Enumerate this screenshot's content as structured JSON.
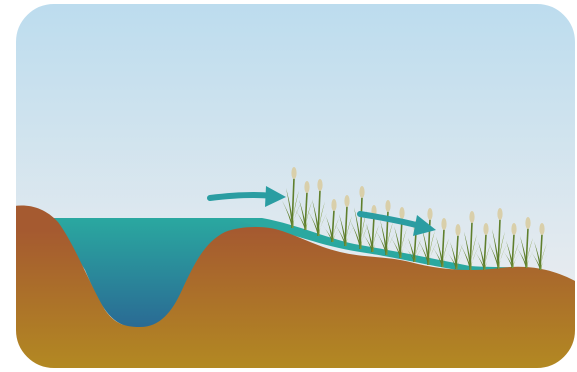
{
  "diagram": {
    "kind": "wetland-cross-section",
    "colors": {
      "sky_top": "#bcdcee",
      "sky_bottom": "#e6ebef",
      "water_surface": "#2aa8a0",
      "water_deep": "#2a6a94",
      "soil_top": "#a55a30",
      "soil_bottom": "#b38a22",
      "arrow": "#2a9da2",
      "reed_leaf": "#7e9a3b",
      "reed_leaf_dark": "#5f7f2c",
      "reed_head": "#d9cfaa",
      "frame_border": "#ffffff"
    },
    "elements": [
      {
        "id": "sky",
        "icon": "sky-gradient"
      },
      {
        "id": "pond-water",
        "icon": "water-body"
      },
      {
        "id": "wetland-water",
        "icon": "shallow-water"
      },
      {
        "id": "soil",
        "icon": "earth-cross-section"
      },
      {
        "id": "flow-arrow-1",
        "icon": "right-arrow"
      },
      {
        "id": "flow-arrow-2",
        "icon": "right-arrow"
      },
      {
        "id": "reed-plants",
        "icon": "reed-grass"
      }
    ]
  }
}
